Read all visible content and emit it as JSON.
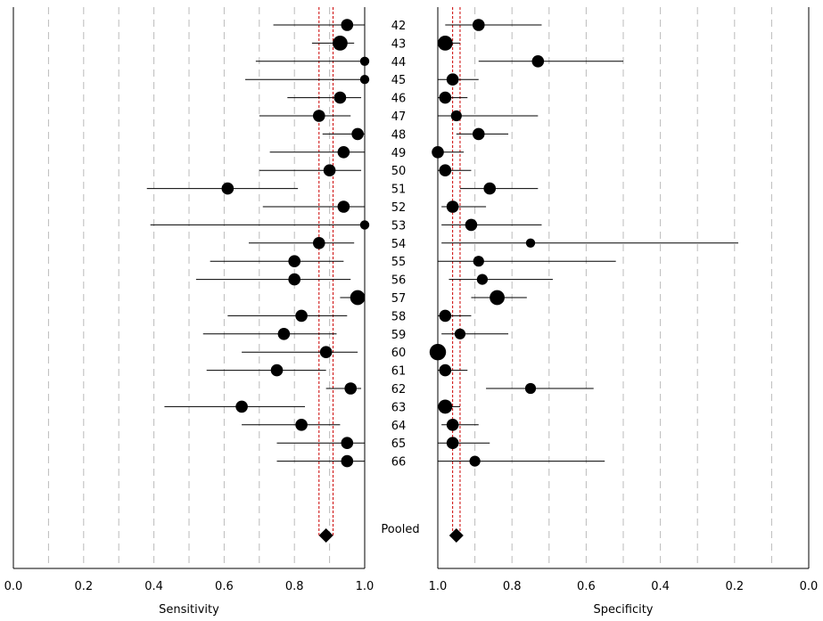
{
  "chart_data": [
    {
      "type": "forest",
      "panel": "sensitivity",
      "xlabel": "Sensitivity",
      "xlim": [
        0,
        1
      ],
      "ticks": [
        "0.0",
        "0.2",
        "0.4",
        "0.6",
        "0.8",
        "1.0"
      ],
      "tick_values": [
        0.0,
        0.2,
        0.4,
        0.6,
        0.8,
        1.0
      ],
      "axis_direction": "ascending",
      "grid": "dashed vertical every 0.1",
      "pooled": {
        "estimate": 0.89,
        "ci": [
          0.87,
          0.91
        ]
      },
      "studies": [
        {
          "id": "42",
          "estimate": 0.95,
          "ci": [
            0.74,
            1.0
          ]
        },
        {
          "id": "43",
          "estimate": 0.93,
          "ci": [
            0.85,
            0.97
          ]
        },
        {
          "id": "44",
          "estimate": 1.0,
          "ci": [
            0.69,
            1.0
          ]
        },
        {
          "id": "45",
          "estimate": 1.0,
          "ci": [
            0.66,
            1.0
          ]
        },
        {
          "id": "46",
          "estimate": 0.93,
          "ci": [
            0.78,
            0.99
          ]
        },
        {
          "id": "47",
          "estimate": 0.87,
          "ci": [
            0.7,
            0.96
          ]
        },
        {
          "id": "48",
          "estimate": 0.98,
          "ci": [
            0.88,
            1.0
          ]
        },
        {
          "id": "49",
          "estimate": 0.94,
          "ci": [
            0.73,
            1.0
          ]
        },
        {
          "id": "50",
          "estimate": 0.9,
          "ci": [
            0.7,
            0.99
          ]
        },
        {
          "id": "51",
          "estimate": 0.61,
          "ci": [
            0.38,
            0.81
          ]
        },
        {
          "id": "52",
          "estimate": 0.94,
          "ci": [
            0.71,
            1.0
          ]
        },
        {
          "id": "53",
          "estimate": 1.0,
          "ci": [
            0.39,
            1.0
          ]
        },
        {
          "id": "54",
          "estimate": 0.87,
          "ci": [
            0.67,
            0.97
          ]
        },
        {
          "id": "55",
          "estimate": 0.8,
          "ci": [
            0.56,
            0.94
          ]
        },
        {
          "id": "56",
          "estimate": 0.8,
          "ci": [
            0.52,
            0.96
          ]
        },
        {
          "id": "57",
          "estimate": 0.98,
          "ci": [
            0.93,
            1.0
          ]
        },
        {
          "id": "58",
          "estimate": 0.82,
          "ci": [
            0.61,
            0.95
          ]
        },
        {
          "id": "59",
          "estimate": 0.77,
          "ci": [
            0.54,
            0.92
          ]
        },
        {
          "id": "60",
          "estimate": 0.89,
          "ci": [
            0.65,
            0.98
          ]
        },
        {
          "id": "61",
          "estimate": 0.75,
          "ci": [
            0.55,
            0.89
          ]
        },
        {
          "id": "62",
          "estimate": 0.96,
          "ci": [
            0.89,
            0.99
          ]
        },
        {
          "id": "63",
          "estimate": 0.65,
          "ci": [
            0.43,
            0.83
          ]
        },
        {
          "id": "64",
          "estimate": 0.82,
          "ci": [
            0.65,
            0.93
          ]
        },
        {
          "id": "65",
          "estimate": 0.95,
          "ci": [
            0.75,
            1.0
          ]
        },
        {
          "id": "66",
          "estimate": 0.95,
          "ci": [
            0.75,
            1.0
          ]
        }
      ]
    },
    {
      "type": "forest",
      "panel": "specificity",
      "xlabel": "Specificity",
      "xlim": [
        1,
        0
      ],
      "ticks": [
        "1.0",
        "0.8",
        "0.6",
        "0.4",
        "0.2",
        "0.0"
      ],
      "tick_values": [
        1.0,
        0.8,
        0.6,
        0.4,
        0.2,
        0.0
      ],
      "axis_direction": "descending",
      "grid": "dashed vertical every 0.1",
      "pooled": {
        "estimate": 0.95,
        "ci": [
          0.94,
          0.96
        ]
      },
      "studies": [
        {
          "id": "42",
          "estimate": 0.89,
          "ci": [
            0.72,
            0.98
          ]
        },
        {
          "id": "43",
          "estimate": 0.98,
          "ci": [
            0.94,
            1.0
          ]
        },
        {
          "id": "44",
          "estimate": 0.73,
          "ci": [
            0.5,
            0.89
          ]
        },
        {
          "id": "45",
          "estimate": 0.96,
          "ci": [
            0.89,
            1.0
          ]
        },
        {
          "id": "46",
          "estimate": 0.98,
          "ci": [
            0.92,
            1.0
          ]
        },
        {
          "id": "47",
          "estimate": 0.95,
          "ci": [
            0.73,
            1.0
          ]
        },
        {
          "id": "48",
          "estimate": 0.89,
          "ci": [
            0.81,
            0.95
          ]
        },
        {
          "id": "49",
          "estimate": 1.0,
          "ci": [
            0.93,
            1.0
          ]
        },
        {
          "id": "50",
          "estimate": 0.98,
          "ci": [
            0.91,
            1.0
          ]
        },
        {
          "id": "51",
          "estimate": 0.86,
          "ci": [
            0.73,
            0.94
          ]
        },
        {
          "id": "52",
          "estimate": 0.96,
          "ci": [
            0.87,
            0.99
          ]
        },
        {
          "id": "53",
          "estimate": 0.91,
          "ci": [
            0.72,
            0.99
          ]
        },
        {
          "id": "54",
          "estimate": 0.75,
          "ci": [
            0.19,
            0.99
          ]
        },
        {
          "id": "55",
          "estimate": 0.89,
          "ci": [
            0.52,
            1.0
          ]
        },
        {
          "id": "56",
          "estimate": 0.88,
          "ci": [
            0.69,
            0.97
          ]
        },
        {
          "id": "57",
          "estimate": 0.84,
          "ci": [
            0.76,
            0.91
          ]
        },
        {
          "id": "58",
          "estimate": 0.98,
          "ci": [
            0.91,
            1.0
          ]
        },
        {
          "id": "59",
          "estimate": 0.94,
          "ci": [
            0.81,
            0.99
          ]
        },
        {
          "id": "60",
          "estimate": 1.0,
          "ci": [
            0.98,
            1.0
          ]
        },
        {
          "id": "61",
          "estimate": 0.98,
          "ci": [
            0.92,
            1.0
          ]
        },
        {
          "id": "62",
          "estimate": 0.75,
          "ci": [
            0.58,
            0.87
          ]
        },
        {
          "id": "63",
          "estimate": 0.98,
          "ci": [
            0.94,
            1.0
          ]
        },
        {
          "id": "64",
          "estimate": 0.96,
          "ci": [
            0.89,
            0.99
          ]
        },
        {
          "id": "65",
          "estimate": 0.96,
          "ci": [
            0.86,
            1.0
          ]
        },
        {
          "id": "66",
          "estimate": 0.9,
          "ci": [
            0.55,
            1.0
          ]
        }
      ]
    }
  ],
  "pooled_label": "Pooled",
  "colors": {
    "marker": "#000000",
    "ci_line": "#000000",
    "pooled_ci_line": "#cc0000",
    "grid": "#bbbbbb",
    "frame": "#000000"
  },
  "marker_weights": {
    "sensitivity": [
      3,
      6,
      1,
      1,
      3,
      3,
      3,
      3,
      3,
      3,
      3,
      1,
      3,
      3,
      3,
      6,
      3,
      3,
      3,
      3,
      3,
      3,
      3,
      3,
      3
    ],
    "specificity": [
      3,
      6,
      3,
      3,
      3,
      2,
      3,
      3,
      3,
      3,
      3,
      3,
      1,
      2,
      2,
      6,
      3,
      2,
      8,
      3,
      2,
      5,
      3,
      3,
      2
    ]
  }
}
